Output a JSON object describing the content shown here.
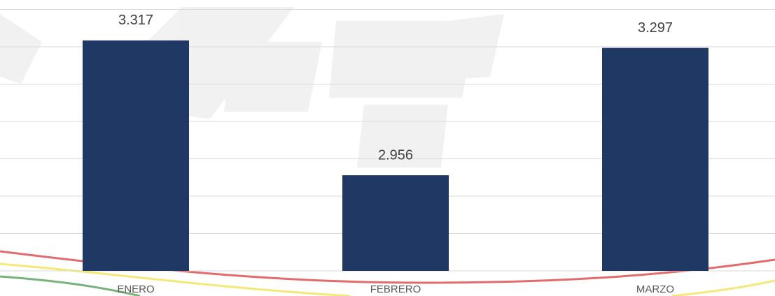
{
  "chart_data": {
    "type": "bar",
    "categories": [
      "ENERO",
      "FEBRERO",
      "MARZO"
    ],
    "values": [
      3317,
      2956,
      3297
    ],
    "value_labels": [
      "3.317",
      "2.956",
      "3.297"
    ],
    "color": "#203864",
    "ylim": [
      2700,
      3400
    ],
    "yticks": [
      2700,
      2800,
      2900,
      3000,
      3100,
      3200,
      3300,
      3400
    ],
    "grid": true
  }
}
